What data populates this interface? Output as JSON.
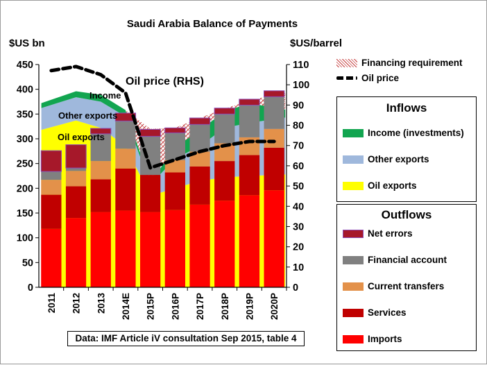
{
  "chart_data": {
    "type": "bar",
    "title": "Saudi Arabia Balance of Payments",
    "ylabel_left": "$US bn",
    "ylabel_right": "$US/barrel",
    "ylim_left": [
      0,
      450
    ],
    "yticks_left": [
      0,
      50,
      100,
      150,
      200,
      250,
      300,
      350,
      400,
      450
    ],
    "ylim_right": [
      0,
      110
    ],
    "yticks_right": [
      0,
      10,
      20,
      30,
      40,
      50,
      60,
      70,
      80,
      90,
      100,
      110
    ],
    "categories": [
      "2011",
      "2012",
      "2013",
      "2014E",
      "2015P",
      "2016P",
      "2017P",
      "2018P",
      "2019P",
      "2020P"
    ],
    "inflows_area": [
      {
        "name": "Oil exports",
        "color": "#ffff00",
        "values": [
          318,
          337,
          322,
          285,
          185,
          200,
          215,
          222,
          225,
          228
        ]
      },
      {
        "name": "Other exports",
        "color": "#9fb8dc",
        "values": [
          44,
          47,
          53,
          60,
          22,
          60,
          70,
          100,
          107,
          115
        ]
      },
      {
        "name": "Income (investments)",
        "color": "#12a550",
        "values": [
          10,
          12,
          14,
          13,
          5,
          22,
          33,
          33,
          40,
          16
        ]
      }
    ],
    "financing_requirement": {
      "name": "Financing requirement",
      "values": [
        0,
        0,
        0,
        0,
        108,
        40,
        24,
        6,
        5,
        35
      ]
    },
    "outflows_bars": [
      {
        "name": "Imports",
        "color": "#ff0000",
        "values": [
          118,
          140,
          152,
          155,
          152,
          156,
          167,
          175,
          186,
          196
        ]
      },
      {
        "name": "Services",
        "color": "#c00000",
        "values": [
          69,
          64,
          66,
          85,
          75,
          76,
          77,
          80,
          81,
          86
        ]
      },
      {
        "name": "Current transfers",
        "color": "#e3914a",
        "values": [
          30,
          31,
          37,
          40,
          0,
          25,
          30,
          36,
          36,
          38
        ]
      },
      {
        "name": "Financial account",
        "color": "#808080",
        "values": [
          17,
          6,
          55,
          56,
          78,
          55,
          55,
          59,
          65,
          65
        ]
      },
      {
        "name": "Net errors",
        "color": "#a6182a",
        "values": [
          42,
          47,
          11,
          16,
          14,
          10,
          13,
          12,
          12,
          12
        ]
      }
    ],
    "oil_price": {
      "name": "Oil price",
      "axis": "right",
      "values": [
        107,
        109,
        105,
        96,
        59,
        63,
        67,
        70,
        72,
        72
      ]
    },
    "annotations": {
      "oil_price_label": "Oil price (RHS)",
      "income_label": "Income",
      "other_exports_label": "Other exports",
      "oil_exports_label": "Oil exports"
    },
    "legend": {
      "top": [
        {
          "label": "Financing requirement",
          "kind": "hatch"
        },
        {
          "label": "Oil price",
          "kind": "dash"
        }
      ],
      "inflows_title": "Inflows",
      "inflows": [
        {
          "label": "Income (investments)",
          "color": "#12a550"
        },
        {
          "label": "Other exports",
          "color": "#9fb8dc"
        },
        {
          "label": "Oil exports",
          "color": "#ffff00"
        }
      ],
      "outflows_title": "Outflows",
      "outflows": [
        {
          "label": "Net errors",
          "color": "#a6182a"
        },
        {
          "label": "Financial account",
          "color": "#808080"
        },
        {
          "label": "Current transfers",
          "color": "#e3914a"
        },
        {
          "label": "Services",
          "color": "#c00000"
        },
        {
          "label": "Imports",
          "color": "#ff0000"
        }
      ]
    },
    "source": "Data: IMF Article iV consultation Sep 2015, table 4",
    "grid": false
  }
}
